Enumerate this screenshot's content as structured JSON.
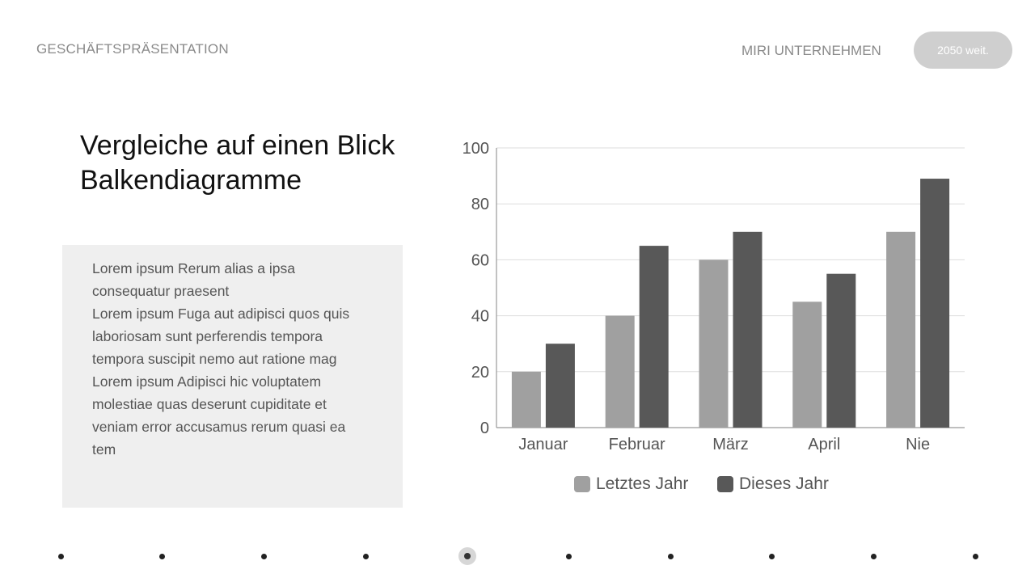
{
  "header": {
    "left_title": "GESCHÄFTSPRÄSENTATION",
    "company": "MIRI UNTERNEHMEN",
    "pill_label": "2050 weit."
  },
  "slide": {
    "title_line1": "Vergleiche auf einen Blick",
    "title_line2": "Balkendiagramme",
    "body_lines": [
      "Lorem ipsum Rerum alias a ipsa",
      "consequatur praesent",
      "Lorem ipsum Fuga aut adipisci quos quis",
      "laboriosam sunt perferendis tempora",
      "tempora suscipit nemo aut ratione mag",
      "Lorem ipsum Adipisci hic voluptatem",
      "molestiae quas deserunt cupiditate et",
      "veniam error accusamus rerum quasi ea",
      "tem"
    ]
  },
  "colors": {
    "series_light": "#a0a0a0",
    "series_dark": "#585858",
    "grid": "#dddddd",
    "axis": "#999999",
    "label": "#555555"
  },
  "chart_data": {
    "type": "bar",
    "categories": [
      "Januar",
      "Februar",
      "März",
      "April",
      "Nie"
    ],
    "series": [
      {
        "name": "Letztes Jahr",
        "values": [
          20,
          40,
          60,
          45,
          70
        ]
      },
      {
        "name": "Dieses Jahr",
        "values": [
          30,
          65,
          70,
          55,
          89
        ]
      }
    ],
    "ylim": [
      0,
      100
    ],
    "yticks": [
      0,
      20,
      40,
      60,
      80,
      100
    ],
    "grid": true,
    "legend": "bottom",
    "title": "",
    "xlabel": "",
    "ylabel": ""
  },
  "pagination": {
    "total": 10,
    "current": 5
  }
}
